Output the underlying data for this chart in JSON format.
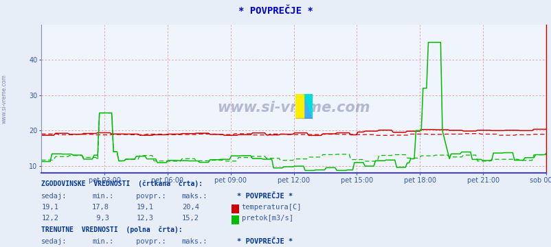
{
  "title": "* POVPREČJE *",
  "title_color": "#0000cc",
  "bg_color": "#e8eef8",
  "plot_bg_color": "#f0f4fc",
  "grid_color": "#dd8888",
  "x_labels": [
    "pet 03:00",
    "pet 06:00",
    "pet 09:00",
    "pet 12:00",
    "pet 15:00",
    "pet 18:00",
    "pet 21:00",
    "sob 00:00"
  ],
  "x_tick_pos": [
    0.125,
    0.25,
    0.375,
    0.5,
    0.625,
    0.75,
    0.875,
    1.0
  ],
  "ylim": [
    8.0,
    50.0
  ],
  "yticks": [
    10,
    20,
    30,
    40
  ],
  "temp_color": "#cc0000",
  "flow_color": "#00bb00",
  "axis_color": "#8888bb",
  "bottom_axis_color": "#4444cc",
  "text_color": "#3355aa",
  "header_color": "#003399",
  "watermark_color": "#223377",
  "sidebar_color": "#334488",
  "n_points": 288
}
